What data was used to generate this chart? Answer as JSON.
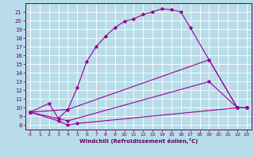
{
  "background_color": "#b8dde8",
  "grid_color": "#ffffff",
  "line_color": "#990099",
  "marker": "*",
  "xlabel": "Windchill (Refroidissement éolien,°C)",
  "xlabel_color": "#660066",
  "tick_color": "#660066",
  "xlim": [
    -0.5,
    23.5
  ],
  "ylim": [
    7.5,
    22.0
  ],
  "xticks": [
    0,
    1,
    2,
    3,
    4,
    5,
    6,
    7,
    8,
    9,
    10,
    11,
    12,
    13,
    14,
    15,
    16,
    17,
    18,
    19,
    20,
    21,
    22,
    23
  ],
  "yticks": [
    8,
    9,
    10,
    11,
    12,
    13,
    14,
    15,
    16,
    17,
    18,
    19,
    20,
    21
  ],
  "series": [
    {
      "x": [
        0,
        2,
        3,
        4,
        5,
        6,
        7,
        8,
        9,
        10,
        11,
        12,
        13,
        14,
        15,
        16,
        17,
        19,
        22,
        23
      ],
      "y": [
        9.5,
        10.5,
        8.8,
        9.8,
        12.3,
        15.3,
        17.0,
        18.2,
        19.2,
        19.9,
        20.2,
        20.7,
        21.0,
        21.35,
        21.25,
        21.0,
        19.2,
        15.5,
        10.0,
        10.0
      ]
    },
    {
      "x": [
        0,
        4,
        19,
        22,
        23
      ],
      "y": [
        9.5,
        9.8,
        15.5,
        10.0,
        10.0
      ]
    },
    {
      "x": [
        0,
        4,
        19,
        22,
        23
      ],
      "y": [
        9.5,
        8.5,
        13.0,
        10.0,
        10.0
      ]
    },
    {
      "x": [
        0,
        3,
        4,
        5,
        22,
        23
      ],
      "y": [
        9.5,
        8.5,
        8.0,
        8.2,
        10.0,
        10.0
      ]
    }
  ]
}
